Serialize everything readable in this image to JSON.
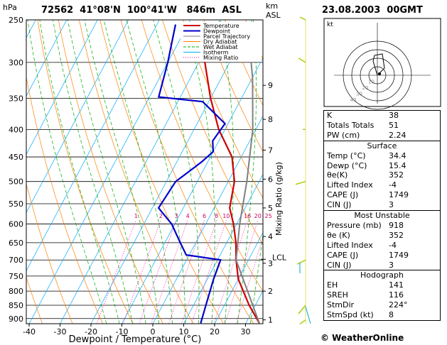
{
  "header": {
    "units_p": "hPa",
    "station_line": "72562  41°08'N  100°41'W   846m  ASL",
    "units_km": "km",
    "units_asl": "ASL",
    "datetime": "23.08.2003  00GMT"
  },
  "legend": [
    {
      "label": "Temperature",
      "color": "#cc0000"
    },
    {
      "label": "Dewpoint",
      "color": "#0000cc"
    },
    {
      "label": "Parcel Trajectory",
      "color": "#808080"
    },
    {
      "label": "Dry Adiabat",
      "color": "#ff8000"
    },
    {
      "label": "Wet Adiabat",
      "color": "#00aa00"
    },
    {
      "label": "Isotherm",
      "color": "#00aaff"
    },
    {
      "label": "Mixing Ratio",
      "color": "#ff00aa"
    }
  ],
  "chart_data": {
    "type": "line",
    "title": "",
    "xlabel": "Dewpoint / Temperature (°C)",
    "ylabel": "hPa",
    "right_label": "Mixing Ratio (g/kg)",
    "xlim": [
      -42,
      36
    ],
    "ylim": [
      920,
      250
    ],
    "y_scale": "log",
    "pressure_ticks": [
      250,
      300,
      350,
      400,
      450,
      500,
      550,
      600,
      650,
      700,
      750,
      800,
      850,
      900
    ],
    "temp_ticks": [
      -40,
      -30,
      -20,
      -10,
      0,
      10,
      20,
      30
    ],
    "km_ticks": [
      {
        "km": "1",
        "p": 905
      },
      {
        "km": "2",
        "p": 800
      },
      {
        "km": "3",
        "p": 710
      },
      {
        "km": "4",
        "p": 633
      },
      {
        "km": "5",
        "p": 560
      },
      {
        "km": "6",
        "p": 495
      },
      {
        "km": "7",
        "p": 437
      },
      {
        "km": "8",
        "p": 383
      },
      {
        "km": "9",
        "p": 331
      }
    ],
    "lcl": {
      "label": "LCL",
      "p": 698
    },
    "mixing_ratio_labels": [
      "1",
      "2",
      "3",
      "4",
      "6",
      "8",
      "10",
      "16",
      "20",
      "25"
    ],
    "series": [
      {
        "name": "Temperature",
        "color": "#cc0000",
        "points": [
          [
            34.4,
            918
          ],
          [
            28,
            850
          ],
          [
            20,
            760
          ],
          [
            16,
            700
          ],
          [
            13,
            650
          ],
          [
            9,
            600
          ],
          [
            5,
            560
          ],
          [
            2,
            500
          ],
          [
            -3,
            450
          ],
          [
            -12,
            400
          ],
          [
            -20,
            350
          ],
          [
            -28,
            300
          ],
          [
            -37,
            255
          ]
        ]
      },
      {
        "name": "Dewpoint",
        "color": "#0000cc",
        "points": [
          [
            15.4,
            918
          ],
          [
            14,
            850
          ],
          [
            12,
            760
          ],
          [
            11,
            700
          ],
          [
            -1,
            685
          ],
          [
            -5,
            650
          ],
          [
            -11,
            600
          ],
          [
            -18,
            560
          ],
          [
            -17,
            500
          ],
          [
            -12,
            460
          ],
          [
            -10,
            440
          ],
          [
            -12,
            420
          ],
          [
            -11,
            390
          ],
          [
            -22,
            355
          ],
          [
            -37,
            348
          ],
          [
            -40,
            300
          ],
          [
            -44,
            255
          ]
        ]
      },
      {
        "name": "Parcel Trajectory",
        "color": "#808080",
        "points": [
          [
            34.4,
            918
          ],
          [
            16,
            700
          ],
          [
            11,
            600
          ],
          [
            6,
            500
          ],
          [
            -1,
            400
          ],
          [
            -10,
            320
          ],
          [
            -18,
            270
          ]
        ]
      }
    ]
  },
  "hodograph": {
    "label": "kt",
    "rings": [
      "10",
      "20",
      "30",
      "40"
    ]
  },
  "indices": {
    "rows": [
      {
        "label": "K",
        "value": "38"
      },
      {
        "label": "Totals Totals",
        "value": "51"
      },
      {
        "label": "PW (cm)",
        "value": "2.24"
      }
    ],
    "surface": {
      "title": "Surface",
      "rows": [
        {
          "label": "Temp (°C)",
          "value": "34.4"
        },
        {
          "label": "Dewp (°C)",
          "value": "15.4"
        },
        {
          "label": "θe(K)",
          "value": "352"
        },
        {
          "label": "Lifted Index",
          "value": "-4"
        },
        {
          "label": "CAPE (J)",
          "value": "1749"
        },
        {
          "label": "CIN (J)",
          "value": "3"
        }
      ]
    },
    "most_unstable": {
      "title": "Most Unstable",
      "rows": [
        {
          "label": "Pressure (mb)",
          "value": "918"
        },
        {
          "label": "θe (K)",
          "value": "352"
        },
        {
          "label": "Lifted Index",
          "value": "-4"
        },
        {
          "label": "CAPE (J)",
          "value": "1749"
        },
        {
          "label": "CIN (J)",
          "value": "3"
        }
      ]
    },
    "hodo_table": {
      "title": "Hodograph",
      "rows": [
        {
          "label": "EH",
          "value": "141"
        },
        {
          "label": "SREH",
          "value": "116"
        },
        {
          "label": "StmDir",
          "value": "224°"
        },
        {
          "label": "StmSpd (kt)",
          "value": "8"
        }
      ]
    }
  },
  "copyright": "© WeatherOnline"
}
